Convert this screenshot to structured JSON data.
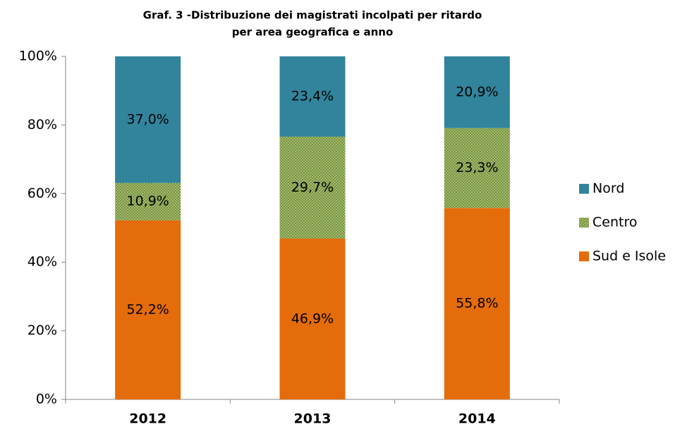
{
  "chart_data": {
    "type": "stacked_bar",
    "title": [
      "Graf. 3 -Distribuzione dei magistrati incolpati per ritardo",
      "per area geografica e anno"
    ],
    "categories": [
      "2012",
      "2013",
      "2014"
    ],
    "series": [
      {
        "name": "Sud e Isole",
        "color": "#e46c0a",
        "values": [
          52.2,
          46.9,
          55.8
        ],
        "value_labels": [
          "52,2%",
          "46,9%",
          "55,8%"
        ]
      },
      {
        "name": "Centro",
        "color": "#77933c",
        "pattern": "dots",
        "values": [
          10.9,
          29.7,
          23.3
        ],
        "value_labels": [
          "10,9%",
          "29,7%",
          "23,3%"
        ]
      },
      {
        "name": "Nord",
        "color": "#31849b",
        "values": [
          37.0,
          23.4,
          20.9
        ],
        "value_labels": [
          "37,0%",
          "23,4%",
          "20,9%"
        ]
      }
    ],
    "ylim": [
      0,
      100
    ],
    "yticks": [
      {
        "value": 0,
        "label": "0%"
      },
      {
        "value": 20,
        "label": "20%"
      },
      {
        "value": 40,
        "label": "40%"
      },
      {
        "value": 60,
        "label": "60%"
      },
      {
        "value": 80,
        "label": "80%"
      },
      {
        "value": 100,
        "label": "100%"
      }
    ],
    "legend": "right"
  }
}
